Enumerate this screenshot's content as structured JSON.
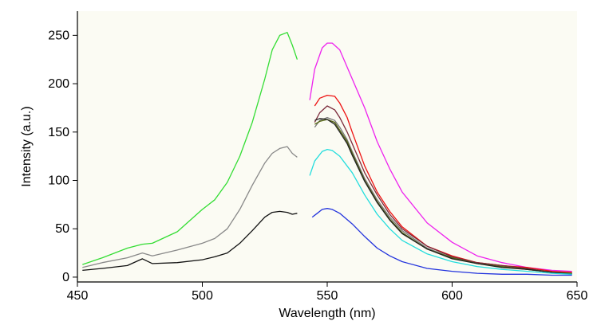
{
  "chart_data": {
    "type": "line",
    "title": "",
    "xlabel": "Wavelength (nm)",
    "ylabel": "Intensity (a.u.)",
    "xlim": [
      450,
      650
    ],
    "ylim": [
      -5,
      275
    ],
    "xticks": [
      450,
      500,
      550,
      600,
      650
    ],
    "yticks": [
      0,
      50,
      100,
      150,
      200,
      250
    ],
    "grid": false,
    "legend": "none",
    "colors": {
      "plot_background": "#fbfbf3",
      "page_background": "#ffffff"
    },
    "series": [
      {
        "color": "#33dd33",
        "x": [
          452,
          460,
          470,
          476,
          480,
          490,
          500,
          505,
          510,
          515,
          520,
          525,
          528,
          531,
          534,
          536,
          538
        ],
        "y": [
          13,
          20,
          30,
          34,
          35,
          47,
          70,
          80,
          98,
          125,
          160,
          205,
          235,
          250,
          253,
          240,
          225
        ]
      },
      {
        "color": "#888888",
        "x": [
          452,
          460,
          470,
          476,
          480,
          490,
          500,
          505,
          510,
          515,
          520,
          525,
          528,
          531,
          534,
          536,
          538
        ],
        "y": [
          10,
          15,
          20,
          25,
          22,
          28,
          35,
          40,
          50,
          70,
          95,
          118,
          128,
          133,
          135,
          128,
          124
        ]
      },
      {
        "color": "#111111",
        "x": [
          452,
          460,
          470,
          476,
          480,
          490,
          500,
          505,
          510,
          515,
          520,
          525,
          528,
          531,
          534,
          536,
          538
        ],
        "y": [
          7,
          9,
          12,
          19,
          14,
          15,
          18,
          21,
          25,
          35,
          48,
          62,
          67,
          68,
          67,
          65,
          66
        ]
      },
      {
        "color": "#ee22ee",
        "x": [
          543,
          545,
          548,
          550,
          552,
          555,
          560,
          565,
          570,
          575,
          580,
          590,
          600,
          610,
          620,
          630,
          640,
          648
        ],
        "y": [
          183,
          215,
          237,
          242,
          242,
          235,
          205,
          175,
          140,
          112,
          88,
          56,
          36,
          22,
          15,
          10,
          7,
          6
        ]
      },
      {
        "color": "#ee1111",
        "x": [
          545,
          547,
          550,
          553,
          555,
          558,
          560,
          565,
          570,
          575,
          580,
          590,
          600,
          610,
          620,
          630,
          640,
          648
        ],
        "y": [
          177,
          185,
          188,
          187,
          180,
          165,
          150,
          115,
          88,
          68,
          52,
          32,
          22,
          15,
          12,
          10,
          6,
          5
        ]
      },
      {
        "color": "#7a2a3a",
        "x": [
          545,
          547,
          550,
          553,
          555,
          558,
          560,
          565,
          570,
          575,
          580,
          590,
          600,
          610,
          620,
          630,
          640,
          648
        ],
        "y": [
          160,
          170,
          177,
          173,
          165,
          150,
          138,
          108,
          85,
          65,
          50,
          32,
          21,
          15,
          12,
          9,
          5,
          4
        ]
      },
      {
        "color": "#777777",
        "x": [
          545,
          547,
          550,
          553,
          555,
          558,
          560,
          565,
          570,
          575,
          580,
          590,
          600,
          610,
          620,
          630,
          640,
          648
        ],
        "y": [
          155,
          162,
          165,
          162,
          155,
          142,
          130,
          102,
          80,
          62,
          48,
          30,
          20,
          14,
          11,
          8,
          5,
          4
        ]
      },
      {
        "color": "#556611",
        "x": [
          545,
          547,
          550,
          553,
          555,
          558,
          560,
          565,
          570,
          575,
          580,
          590,
          600,
          610,
          620,
          630,
          640,
          648
        ],
        "y": [
          158,
          161,
          163,
          160,
          152,
          140,
          128,
          100,
          78,
          60,
          46,
          29,
          20,
          14,
          11,
          8,
          5,
          4
        ]
      },
      {
        "color": "#222222",
        "x": [
          545,
          547,
          550,
          553,
          555,
          558,
          560,
          565,
          570,
          575,
          580,
          590,
          600,
          610,
          620,
          630,
          640,
          648
        ],
        "y": [
          162,
          164,
          163,
          158,
          150,
          138,
          126,
          99,
          77,
          59,
          45,
          29,
          19,
          14,
          10,
          8,
          5,
          3
        ]
      },
      {
        "color": "#22dddd",
        "x": [
          543,
          545,
          548,
          550,
          552,
          555,
          560,
          565,
          570,
          575,
          580,
          590,
          600,
          610,
          620,
          630,
          640,
          648
        ],
        "y": [
          105,
          120,
          130,
          132,
          131,
          125,
          108,
          85,
          65,
          50,
          38,
          24,
          16,
          11,
          8,
          6,
          4,
          3
        ]
      },
      {
        "color": "#2233dd",
        "x": [
          544,
          546,
          548,
          550,
          552,
          555,
          560,
          565,
          570,
          575,
          580,
          590,
          600,
          610,
          620,
          630,
          640,
          648
        ],
        "y": [
          62,
          66,
          70,
          71,
          70,
          66,
          55,
          42,
          30,
          22,
          16,
          9,
          6,
          4,
          3,
          3,
          2,
          2
        ]
      }
    ]
  }
}
